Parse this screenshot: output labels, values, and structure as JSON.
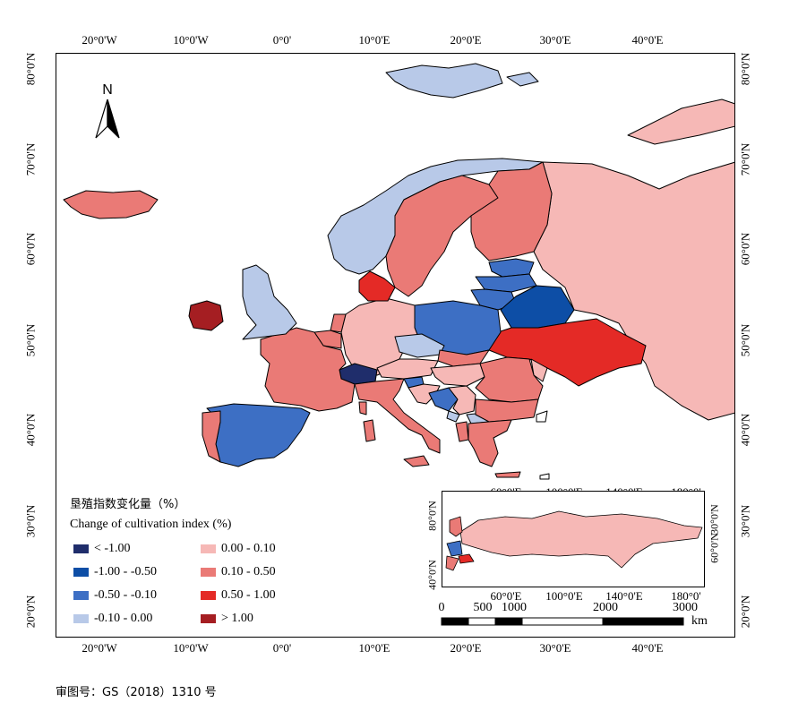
{
  "map": {
    "top_ticks": [
      "20°0'W",
      "10°0'W",
      "0°0'",
      "10°0'E",
      "20°0'E",
      "30°0'E",
      "40°0'E"
    ],
    "bottom_ticks": [
      "20°0'W",
      "10°0'W",
      "0°0'",
      "10°0'E",
      "20°0'E",
      "30°0'E",
      "40°0'E"
    ],
    "left_ticks": [
      "80°0'N",
      "70°0'N",
      "60°0'N",
      "50°0'N",
      "40°0'N",
      "30°0'N",
      "20°0'N"
    ],
    "right_ticks": [
      "80°0'N",
      "70°0'N",
      "60°0'N",
      "50°0'N",
      "40°0'N",
      "30°0'N",
      "20°0'N"
    ],
    "north_label": "N"
  },
  "legend": {
    "title_cn": "垦殖指数变化量（%）",
    "title_en": "Change of cultivation index (%)",
    "items": [
      {
        "label": "< -1.00",
        "color": "#1f2d6b"
      },
      {
        "label": "-1.00 - -0.50",
        "color": "#0d4ea6"
      },
      {
        "label": "-0.50 - -0.10",
        "color": "#3d6fc4"
      },
      {
        "label": "-0.10 - 0.00",
        "color": "#b8c9e8"
      },
      {
        "label": "0.00 - 0.10",
        "color": "#f6b8b6"
      },
      {
        "label": "0.10 - 0.50",
        "color": "#ea7a76"
      },
      {
        "label": "0.50 - 1.00",
        "color": "#e42a26"
      },
      {
        "label": "> 1.00",
        "color": "#a51e22"
      }
    ]
  },
  "inset": {
    "top_ticks": [
      "60°0'E",
      "100°0'E",
      "140°0'E",
      "180°0'"
    ],
    "bottom_ticks": [
      "60°0'E",
      "100°0'E",
      "140°0'E",
      "180°0'"
    ],
    "left_ticks": [
      "80°0'N",
      "40°0'N"
    ],
    "right_ticks": [
      "30°0'N",
      "60°0'N"
    ]
  },
  "scalebar": {
    "labels": [
      "0",
      "500",
      "1000",
      "2000",
      "3000"
    ],
    "unit": "km"
  },
  "approval": "审图号：GS（2018）1310 号"
}
